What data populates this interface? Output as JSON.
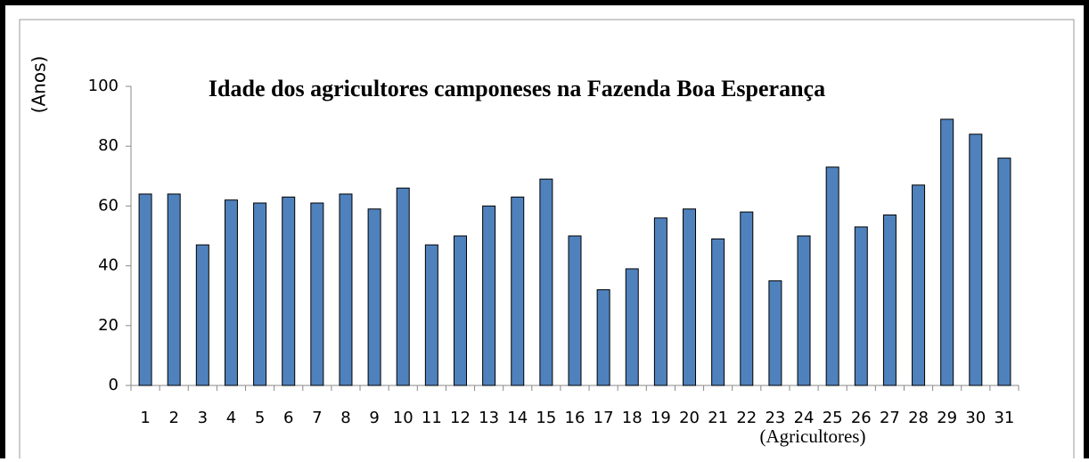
{
  "chart_data": {
    "type": "bar",
    "title": "Idade dos agricultores camponeses na Fazenda Boa Esperança",
    "x_label": "(Agricultores)",
    "y_label": "(Anos)",
    "categories": [
      "1",
      "2",
      "3",
      "4",
      "5",
      "6",
      "7",
      "8",
      "9",
      "10",
      "11",
      "12",
      "13",
      "14",
      "15",
      "16",
      "17",
      "18",
      "19",
      "20",
      "21",
      "22",
      "23",
      "24",
      "25",
      "26",
      "27",
      "28",
      "29",
      "30",
      "31"
    ],
    "values": [
      64,
      64,
      47,
      62,
      61,
      63,
      61,
      64,
      59,
      66,
      47,
      50,
      60,
      63,
      69,
      50,
      32,
      39,
      56,
      59,
      49,
      58,
      35,
      50,
      73,
      53,
      57,
      67,
      89,
      84,
      76
    ],
    "color": "#4f81bd",
    "ylim": [
      0,
      100
    ],
    "yticks": [
      0,
      20,
      40,
      60,
      80,
      100
    ],
    "grid": false
  }
}
